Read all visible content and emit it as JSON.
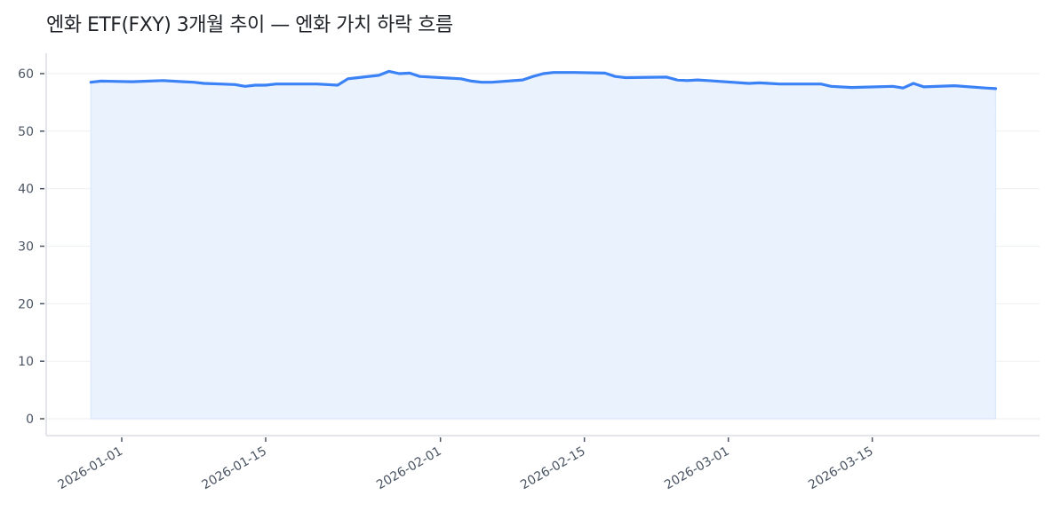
{
  "title": "엔화 ETF(FXY) 3개월 추이 — 엔화 가치 하락 흐름",
  "colors": {
    "line": "#3b82f6",
    "fill": "#eaf2fe",
    "fill_edge": "#dbe7fb",
    "grid": "#f0f1f4",
    "spine": "#e3e5ea",
    "tick": "#4b5563"
  },
  "chart_data": {
    "type": "area",
    "title": "엔화 ETF(FXY) 3개월 추이 — 엔화 가치 하락 흐름",
    "xlabel": "",
    "ylabel": "",
    "ylim": [
      -3,
      63.5
    ],
    "yticks": [
      0,
      10,
      20,
      30,
      40,
      50,
      60
    ],
    "xticks": [
      "2026-01-01",
      "2026-01-15",
      "2026-02-01",
      "2026-02-15",
      "2026-03-01",
      "2026-03-15"
    ],
    "grid": true,
    "legend": null,
    "series": [
      {
        "name": "FXY",
        "points": [
          {
            "x": "2025-12-29",
            "y": 58.5
          },
          {
            "x": "2025-12-30",
            "y": 58.7
          },
          {
            "x": "2026-01-02",
            "y": 58.6
          },
          {
            "x": "2026-01-05",
            "y": 58.8
          },
          {
            "x": "2026-01-07",
            "y": 58.6
          },
          {
            "x": "2026-01-08",
            "y": 58.5
          },
          {
            "x": "2026-01-09",
            "y": 58.3
          },
          {
            "x": "2026-01-12",
            "y": 58.1
          },
          {
            "x": "2026-01-13",
            "y": 57.8
          },
          {
            "x": "2026-01-14",
            "y": 58.0
          },
          {
            "x": "2026-01-15",
            "y": 58.0
          },
          {
            "x": "2026-01-16",
            "y": 58.2
          },
          {
            "x": "2026-01-20",
            "y": 58.2
          },
          {
            "x": "2026-01-22",
            "y": 58.0
          },
          {
            "x": "2026-01-23",
            "y": 59.1
          },
          {
            "x": "2026-01-24",
            "y": 59.3
          },
          {
            "x": "2026-01-26",
            "y": 59.7
          },
          {
            "x": "2026-01-27",
            "y": 60.4
          },
          {
            "x": "2026-01-28",
            "y": 60.0
          },
          {
            "x": "2026-01-29",
            "y": 60.1
          },
          {
            "x": "2026-01-30",
            "y": 59.5
          },
          {
            "x": "2026-02-03",
            "y": 59.1
          },
          {
            "x": "2026-02-04",
            "y": 58.7
          },
          {
            "x": "2026-02-05",
            "y": 58.5
          },
          {
            "x": "2026-02-06",
            "y": 58.5
          },
          {
            "x": "2026-02-09",
            "y": 58.9
          },
          {
            "x": "2026-02-10",
            "y": 59.5
          },
          {
            "x": "2026-02-11",
            "y": 60.0
          },
          {
            "x": "2026-02-12",
            "y": 60.2
          },
          {
            "x": "2026-02-14",
            "y": 60.2
          },
          {
            "x": "2026-02-17",
            "y": 60.1
          },
          {
            "x": "2026-02-18",
            "y": 59.5
          },
          {
            "x": "2026-02-19",
            "y": 59.3
          },
          {
            "x": "2026-02-23",
            "y": 59.4
          },
          {
            "x": "2026-02-24",
            "y": 58.9
          },
          {
            "x": "2026-02-25",
            "y": 58.8
          },
          {
            "x": "2026-02-26",
            "y": 58.9
          },
          {
            "x": "2026-02-27",
            "y": 58.8
          },
          {
            "x": "2026-03-03",
            "y": 58.3
          },
          {
            "x": "2026-03-04",
            "y": 58.4
          },
          {
            "x": "2026-03-05",
            "y": 58.3
          },
          {
            "x": "2026-03-06",
            "y": 58.2
          },
          {
            "x": "2026-03-10",
            "y": 58.2
          },
          {
            "x": "2026-03-11",
            "y": 57.8
          },
          {
            "x": "2026-03-13",
            "y": 57.6
          },
          {
            "x": "2026-03-17",
            "y": 57.8
          },
          {
            "x": "2026-03-18",
            "y": 57.5
          },
          {
            "x": "2026-03-19",
            "y": 58.3
          },
          {
            "x": "2026-03-20",
            "y": 57.7
          },
          {
            "x": "2026-03-23",
            "y": 57.9
          },
          {
            "x": "2026-03-26",
            "y": 57.5
          },
          {
            "x": "2026-03-27",
            "y": 57.4
          }
        ]
      }
    ]
  }
}
